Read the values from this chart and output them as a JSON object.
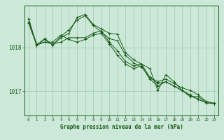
{
  "title": "Graphe pression niveau de la mer (hPa)",
  "background_color": "#cce8d8",
  "plot_bg_color": "#cce8d8",
  "grid_color": "#9dc9aa",
  "line_color": "#1a5c1a",
  "marker_color": "#1a5c1a",
  "yticks": [
    1017,
    1018
  ],
  "ylim": [
    1016.45,
    1018.95
  ],
  "xlim": [
    -0.5,
    23.5
  ],
  "xticks": [
    0,
    1,
    2,
    3,
    4,
    5,
    6,
    7,
    8,
    9,
    10,
    11,
    12,
    13,
    14,
    15,
    16,
    17,
    18,
    19,
    20,
    21,
    22,
    23
  ],
  "series": [
    [
      1018.65,
      1018.05,
      1018.2,
      1018.05,
      1018.25,
      1018.4,
      1018.62,
      1018.72,
      1018.5,
      1018.35,
      1018.2,
      1018.15,
      1017.82,
      1017.65,
      1017.55,
      1017.32,
      1017.22,
      1017.28,
      1017.18,
      1017.08,
      1017.02,
      1016.92,
      1016.77,
      1016.73
    ],
    [
      1018.65,
      1018.05,
      1018.18,
      1018.05,
      1018.22,
      1018.32,
      1018.68,
      1018.75,
      1018.52,
      1018.42,
      1018.32,
      1018.3,
      1017.88,
      1017.72,
      1017.62,
      1017.52,
      1017.02,
      1017.38,
      1017.22,
      1017.02,
      1016.88,
      1016.88,
      1016.74,
      1016.72
    ],
    [
      1018.55,
      1018.05,
      1018.12,
      1018.12,
      1018.28,
      1018.18,
      1018.12,
      1018.18,
      1018.28,
      1018.32,
      1018.08,
      1017.82,
      1017.62,
      1017.52,
      1017.58,
      1017.28,
      1017.12,
      1017.22,
      1017.12,
      1017.02,
      1016.92,
      1016.82,
      1016.74,
      1016.72
    ],
    [
      1018.58,
      1018.08,
      1018.12,
      1018.08,
      1018.12,
      1018.22,
      1018.22,
      1018.22,
      1018.32,
      1018.38,
      1018.12,
      1017.92,
      1017.68,
      1017.58,
      1017.62,
      1017.32,
      1017.18,
      1017.22,
      1017.12,
      1017.02,
      1016.9,
      1016.82,
      1016.74,
      1016.72
    ]
  ]
}
